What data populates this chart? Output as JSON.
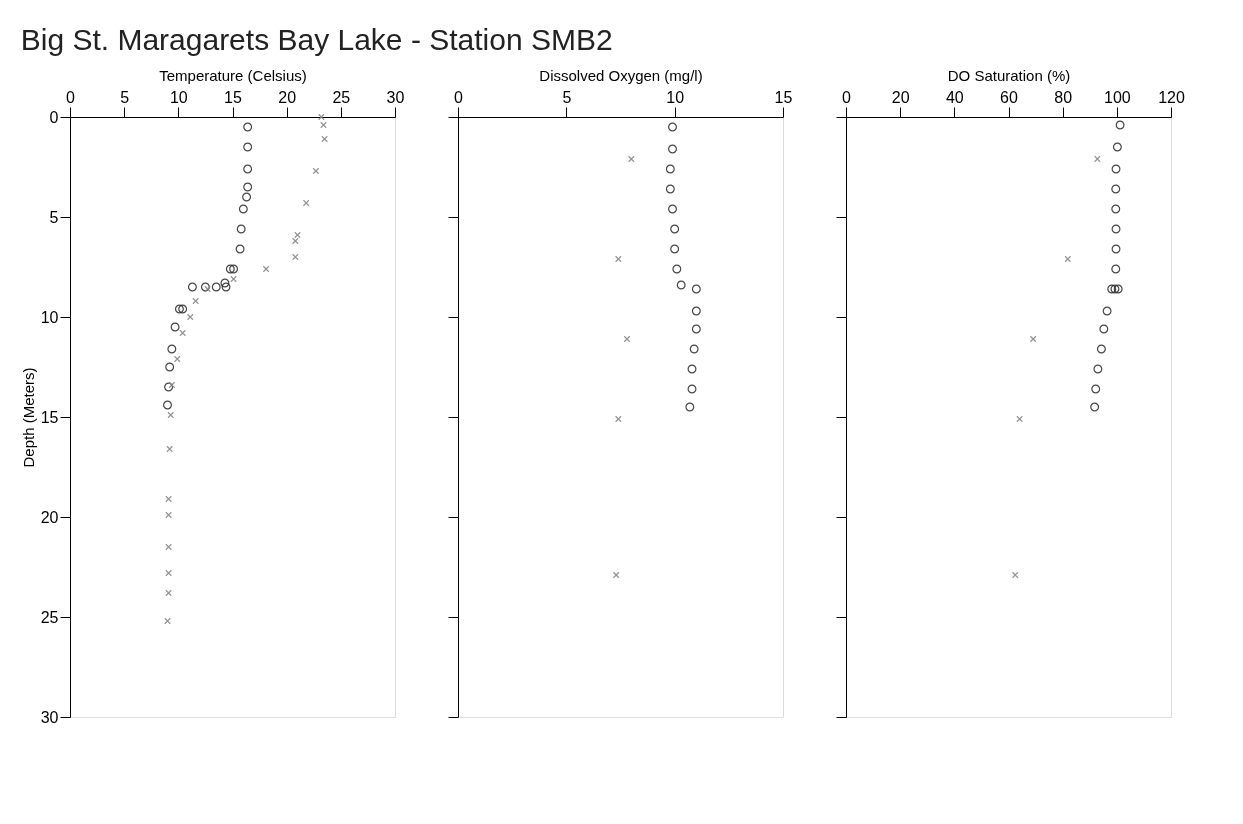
{
  "chart_data": [
    {
      "type": "scatter",
      "title": "Big St. Maragarets Bay Lake - Station SMB2",
      "xlabel": "Temperature (Celsius)",
      "ylabel": "Depth (Meters)",
      "xlim": [
        0,
        30
      ],
      "xticks": [
        0,
        5,
        10,
        15,
        20,
        25,
        30
      ],
      "ylim": [
        30,
        0
      ],
      "yticks": [
        0,
        5,
        10,
        15,
        20,
        25,
        30
      ],
      "grid": false,
      "series": [
        {
          "color": "#333333",
          "marker": "circle",
          "x": [
            16.4,
            16.4,
            16.4,
            16.4,
            16.3,
            16.0,
            15.8,
            15.7,
            15.1,
            14.8,
            14.3,
            14.4,
            13.5,
            12.5,
            11.3,
            10.4,
            10.1,
            9.7,
            9.4,
            9.2,
            9.1,
            9.0
          ],
          "values": [
            0.5,
            1.5,
            2.6,
            3.5,
            4.0,
            4.6,
            5.6,
            6.6,
            7.6,
            7.6,
            8.3,
            8.5,
            8.5,
            8.5,
            8.5,
            9.6,
            9.6,
            10.5,
            11.6,
            12.5,
            13.5,
            14.4
          ]
        },
        {
          "color": "#888888",
          "marker": "cross",
          "x": [
            23.2,
            23.4,
            23.5,
            22.7,
            21.8,
            21.0,
            20.8,
            20.8,
            18.1,
            15.1,
            12.7,
            11.6,
            11.1,
            10.4,
            9.9,
            9.4,
            9.3,
            9.2,
            9.1,
            9.1,
            9.1,
            9.1,
            9.1,
            9.0
          ],
          "values": [
            0.0,
            0.4,
            1.1,
            2.7,
            4.3,
            5.9,
            6.2,
            7.0,
            7.6,
            8.1,
            8.6,
            9.2,
            10.0,
            10.8,
            12.1,
            13.4,
            14.9,
            16.6,
            19.1,
            19.9,
            21.5,
            22.8,
            23.8,
            25.2
          ]
        }
      ]
    },
    {
      "type": "scatter",
      "xlabel": "Dissolved Oxygen (mg/l)",
      "xlim": [
        0,
        15
      ],
      "xticks": [
        0,
        5,
        10,
        15
      ],
      "ylim": [
        30,
        0
      ],
      "yticks": [
        0,
        5,
        10,
        15,
        20,
        25,
        30
      ],
      "tick_labels": "x",
      "grid": false,
      "series": [
        {
          "color": "#333333",
          "marker": "circle",
          "x": [
            9.9,
            9.9,
            9.8,
            9.8,
            9.9,
            10.0,
            10.0,
            10.1,
            10.3,
            11.0,
            11.0,
            11.0,
            10.9,
            10.8,
            10.8,
            10.7
          ],
          "values": [
            0.5,
            1.6,
            2.6,
            3.6,
            4.6,
            5.6,
            6.6,
            7.6,
            8.4,
            8.6,
            9.7,
            10.6,
            11.6,
            12.6,
            13.6,
            14.5
          ]
        },
        {
          "color": "#888888",
          "marker": "cross",
          "x": [
            8.0,
            7.4,
            7.8,
            7.4,
            7.3
          ],
          "values": [
            2.1,
            7.1,
            11.1,
            15.1,
            22.9
          ]
        }
      ]
    },
    {
      "type": "scatter",
      "xlabel": "DO Saturation (%)",
      "xlim": [
        0,
        120
      ],
      "xticks": [
        0,
        20,
        40,
        60,
        80,
        100,
        120
      ],
      "ylim": [
        30,
        0
      ],
      "yticks": [
        0,
        5,
        10,
        15,
        20,
        25,
        30
      ],
      "tick_labels": "x",
      "grid": false,
      "series": [
        {
          "color": "#333333",
          "marker": "circle",
          "x": [
            101.2,
            100.2,
            99.7,
            99.6,
            99.6,
            99.7,
            99.7,
            99.6,
            98.1,
            99.3,
            100.5,
            96.4,
            95.2,
            94.3,
            93.0,
            92.2,
            91.8
          ],
          "values": [
            0.4,
            1.5,
            2.6,
            3.6,
            4.6,
            5.6,
            6.6,
            7.6,
            8.6,
            8.6,
            8.6,
            9.7,
            10.6,
            11.6,
            12.6,
            13.6,
            14.5
          ]
        },
        {
          "color": "#888888",
          "marker": "cross",
          "x": [
            92.8,
            81.9,
            69.1,
            64.1,
            62.5
          ],
          "values": [
            2.1,
            7.1,
            11.1,
            15.1,
            22.9
          ]
        }
      ]
    }
  ]
}
